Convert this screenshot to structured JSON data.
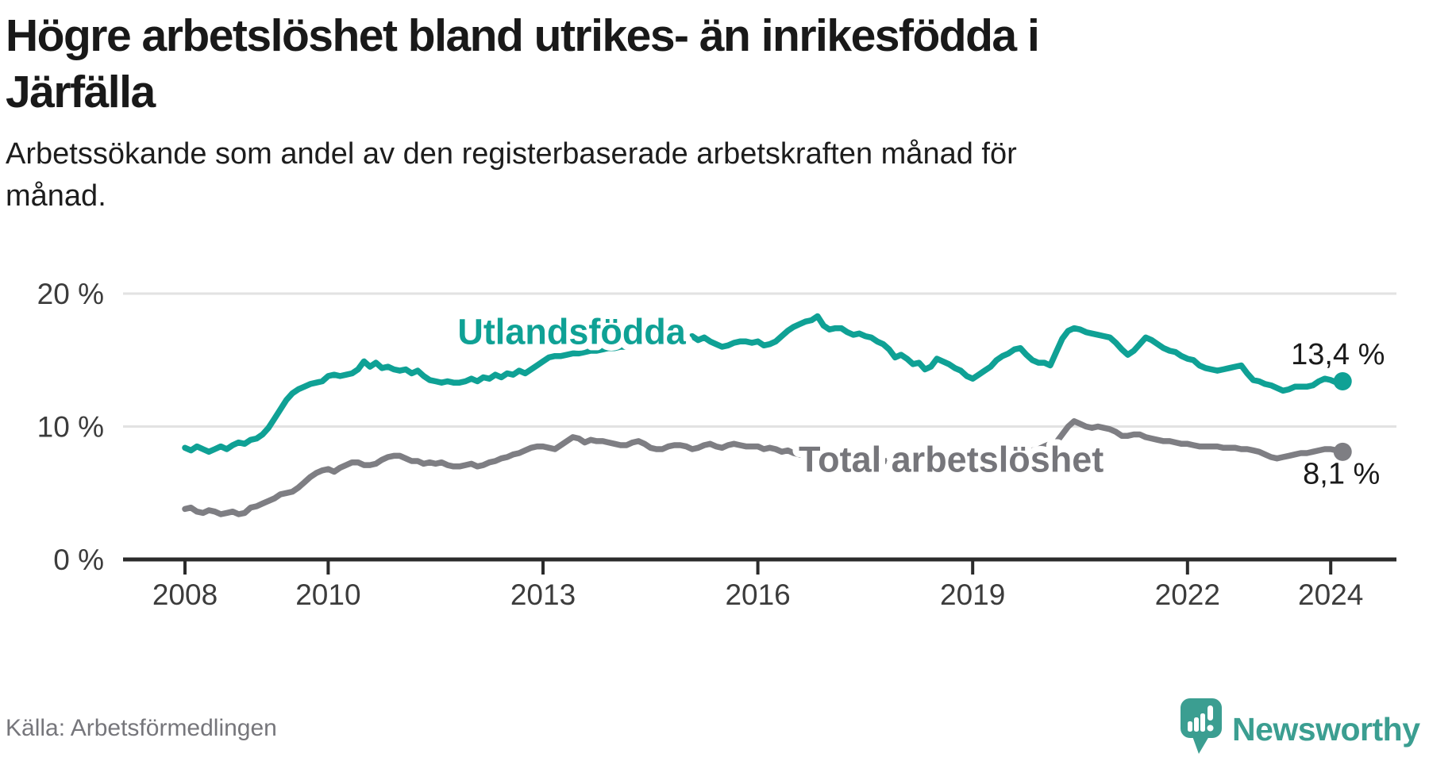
{
  "title": {
    "line1": "Högre arbetslöshet bland utrikes- än inrikesfödda i",
    "line2": "Järfälla"
  },
  "subtitle": {
    "line1": "Arbetssökande som andel av den registerbaserade arbetskraften månad för",
    "line2": "månad."
  },
  "source": "Källa: Arbetsförmedlingen",
  "logo": {
    "text": "Newsworthy",
    "color": "#3b9e91"
  },
  "colors": {
    "teal": "#0fa195",
    "gray_line": "#7e7e83",
    "gray_label": "#76767b",
    "axis": "#2b2b2b",
    "gridline": "#e2e2e2",
    "tick_label": "#3c3c3c",
    "value_label": "#1a1a1a"
  },
  "chart_data": {
    "type": "line",
    "frequency": "monthly",
    "start_year": 2008,
    "end_point": "2024-03",
    "ylim": [
      0,
      20
    ],
    "y_ticks": [
      {
        "value": 0,
        "label": "0 %"
      },
      {
        "value": 10,
        "label": "10 %"
      },
      {
        "value": 20,
        "label": "20 %"
      }
    ],
    "x_ticks": [
      2008,
      2010,
      2013,
      2016,
      2019,
      2022,
      2024
    ],
    "grid": "horizontal",
    "series": [
      {
        "name": "Utlandsfödda",
        "color": "#0fa195",
        "end_label": "13,4 %",
        "values": [
          8.4,
          8.2,
          8.5,
          8.3,
          8.1,
          8.3,
          8.5,
          8.3,
          8.6,
          8.8,
          8.7,
          9.0,
          9.1,
          9.4,
          9.9,
          10.6,
          11.3,
          12.0,
          12.5,
          12.8,
          13.0,
          13.2,
          13.3,
          13.4,
          13.8,
          13.9,
          13.8,
          13.9,
          14.0,
          14.3,
          14.9,
          14.5,
          14.8,
          14.4,
          14.5,
          14.3,
          14.2,
          14.3,
          14.0,
          14.2,
          13.8,
          13.5,
          13.4,
          13.3,
          13.4,
          13.3,
          13.3,
          13.4,
          13.6,
          13.4,
          13.7,
          13.6,
          13.9,
          13.7,
          14.0,
          13.9,
          14.2,
          14.0,
          14.3,
          14.6,
          14.9,
          15.2,
          15.3,
          15.3,
          15.4,
          15.5,
          15.5,
          15.6,
          15.7,
          15.7,
          15.8,
          15.9,
          15.9,
          16.0,
          16.0,
          16.1,
          16.1,
          16.2,
          16.2,
          16.3,
          16.3,
          16.4,
          16.4,
          16.5,
          16.6,
          16.8,
          16.5,
          16.7,
          16.4,
          16.2,
          16.0,
          16.1,
          16.3,
          16.4,
          16.4,
          16.3,
          16.4,
          16.1,
          16.2,
          16.4,
          16.8,
          17.2,
          17.5,
          17.7,
          17.9,
          18.0,
          18.3,
          17.6,
          17.3,
          17.4,
          17.4,
          17.1,
          16.9,
          17.0,
          16.8,
          16.7,
          16.4,
          16.2,
          15.8,
          15.2,
          15.4,
          15.1,
          14.7,
          14.8,
          14.3,
          14.5,
          15.1,
          14.9,
          14.7,
          14.4,
          14.2,
          13.8,
          13.6,
          13.9,
          14.2,
          14.5,
          15.0,
          15.3,
          15.5,
          15.8,
          15.9,
          15.4,
          15.0,
          14.8,
          14.8,
          14.6,
          15.6,
          16.6,
          17.2,
          17.4,
          17.3,
          17.1,
          17.0,
          16.9,
          16.8,
          16.7,
          16.3,
          15.8,
          15.4,
          15.7,
          16.2,
          16.7,
          16.5,
          16.2,
          15.9,
          15.7,
          15.6,
          15.3,
          15.1,
          15.0,
          14.6,
          14.4,
          14.3,
          14.2,
          14.3,
          14.4,
          14.5,
          14.6,
          14.0,
          13.5,
          13.4,
          13.2,
          13.1,
          12.9,
          12.7,
          12.8,
          13.0,
          13.0,
          13.0,
          13.1,
          13.4,
          13.6,
          13.5,
          13.3,
          13.4
        ]
      },
      {
        "name": "Total arbetslöshet",
        "color": "#7e7e83",
        "end_label": "8,1 %",
        "values": [
          3.8,
          3.9,
          3.6,
          3.5,
          3.7,
          3.6,
          3.4,
          3.5,
          3.6,
          3.4,
          3.5,
          3.9,
          4.0,
          4.2,
          4.4,
          4.6,
          4.9,
          5.0,
          5.1,
          5.4,
          5.8,
          6.2,
          6.5,
          6.7,
          6.8,
          6.6,
          6.9,
          7.1,
          7.3,
          7.3,
          7.1,
          7.1,
          7.2,
          7.5,
          7.7,
          7.8,
          7.8,
          7.6,
          7.4,
          7.4,
          7.2,
          7.3,
          7.2,
          7.3,
          7.1,
          7.0,
          7.0,
          7.1,
          7.2,
          7.0,
          7.1,
          7.3,
          7.4,
          7.6,
          7.7,
          7.9,
          8.0,
          8.2,
          8.4,
          8.5,
          8.5,
          8.4,
          8.3,
          8.6,
          8.9,
          9.2,
          9.1,
          8.8,
          9.0,
          8.9,
          8.9,
          8.8,
          8.7,
          8.6,
          8.6,
          8.8,
          8.9,
          8.7,
          8.4,
          8.3,
          8.3,
          8.5,
          8.6,
          8.6,
          8.5,
          8.3,
          8.4,
          8.6,
          8.7,
          8.5,
          8.4,
          8.6,
          8.7,
          8.6,
          8.5,
          8.5,
          8.5,
          8.3,
          8.4,
          8.3,
          8.1,
          8.2,
          8.0,
          7.9,
          8.0,
          8.1,
          8.0,
          8.0,
          8.0,
          7.9,
          7.9,
          7.8,
          7.7,
          7.7,
          7.6,
          7.5,
          7.5,
          7.4,
          7.4,
          7.3,
          7.3,
          7.2,
          7.2,
          7.1,
          7.1,
          7.0,
          7.0,
          7.1,
          7.1,
          7.2,
          7.2,
          7.3,
          7.4,
          7.4,
          7.5,
          7.5,
          7.6,
          7.7,
          7.8,
          7.9,
          8.0,
          8.1,
          8.2,
          8.3,
          8.5,
          8.7,
          8.8,
          9.4,
          10.0,
          10.4,
          10.2,
          10.0,
          9.9,
          10.0,
          9.9,
          9.8,
          9.6,
          9.3,
          9.3,
          9.4,
          9.4,
          9.2,
          9.1,
          9.0,
          8.9,
          8.9,
          8.8,
          8.7,
          8.7,
          8.6,
          8.5,
          8.5,
          8.5,
          8.5,
          8.4,
          8.4,
          8.4,
          8.3,
          8.3,
          8.2,
          8.1,
          7.9,
          7.7,
          7.6,
          7.7,
          7.8,
          7.9,
          8.0,
          8.0,
          8.1,
          8.2,
          8.3,
          8.3,
          8.2,
          8.1
        ]
      }
    ],
    "series_labels": [
      {
        "text": "Utlandsfödda",
        "year": 2013.4,
        "value": 16.2,
        "color": "#0fa195"
      },
      {
        "text": "Total arbetslöshet",
        "year": 2018.7,
        "value": 6.6,
        "color": "#76767b"
      }
    ],
    "end_labels": [
      {
        "text": "13,4 %",
        "year": 2024.1,
        "value": 14.7
      },
      {
        "text": "8,1 %",
        "year": 2024.15,
        "value": 5.7
      }
    ]
  }
}
